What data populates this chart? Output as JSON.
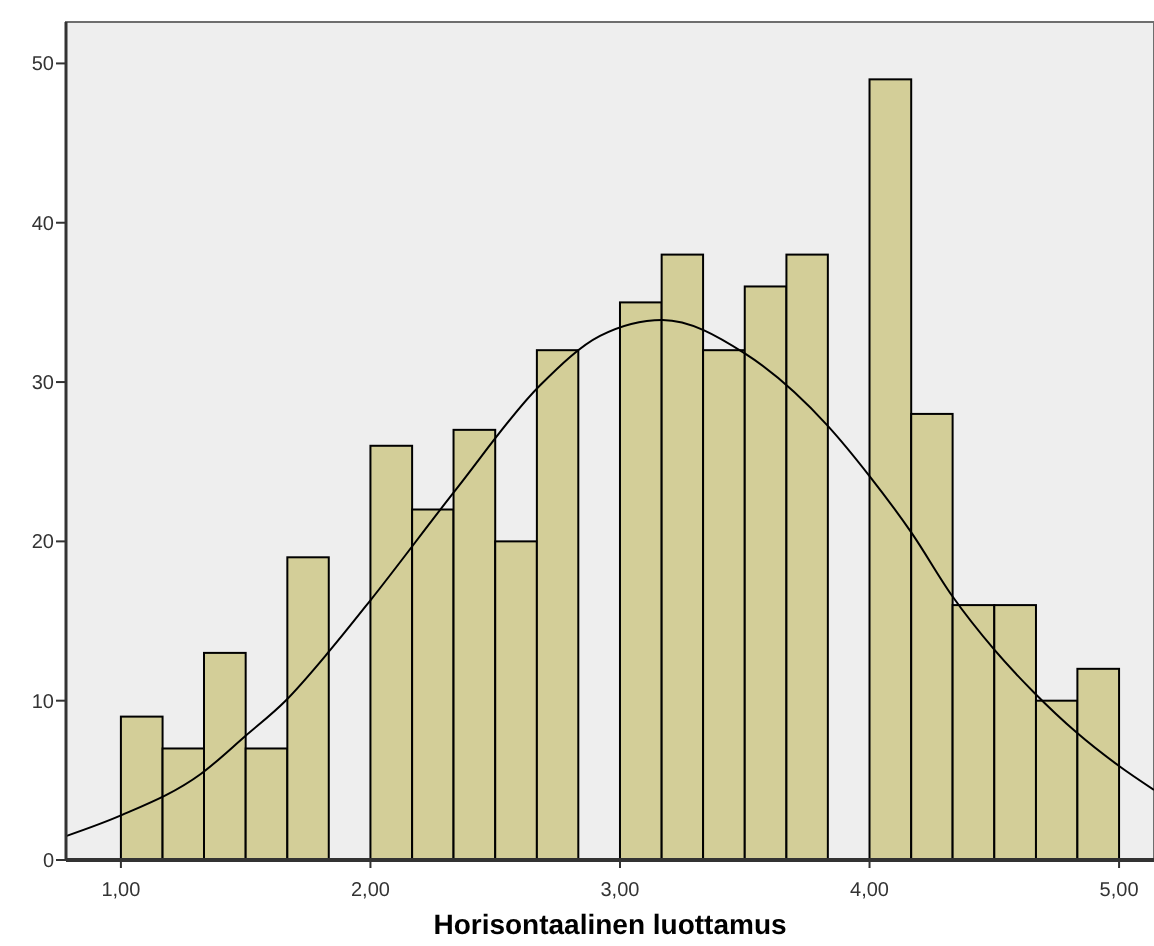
{
  "chart_data": {
    "type": "histogram",
    "xlabel": "Horisontaalinen luottamus",
    "xlim": [
      0.78,
      5.14
    ],
    "ylim": [
      0,
      52.6
    ],
    "xticks": [
      {
        "value": 1,
        "label": "1,00"
      },
      {
        "value": 2,
        "label": "2,00"
      },
      {
        "value": 3,
        "label": "3,00"
      },
      {
        "value": 4,
        "label": "4,00"
      },
      {
        "value": 5,
        "label": "5,00"
      }
    ],
    "yticks": [
      0,
      10,
      20,
      30,
      40,
      50
    ],
    "grid": false,
    "series": [
      {
        "color": "#d3ce98",
        "bins": [
          1,
          1.167,
          1.333,
          1.5,
          1.667,
          1.833,
          2,
          2.167,
          2.333,
          2.5,
          2.667,
          2.833,
          3,
          3.167,
          3.333,
          3.5,
          3.667,
          3.833,
          4,
          4.167,
          4.333,
          4.5,
          4.667,
          4.833,
          5
        ],
        "values": [
          9,
          7,
          13,
          7,
          19,
          0,
          26,
          22,
          27,
          20,
          32,
          0,
          35,
          38,
          32,
          36,
          38,
          0,
          49,
          28,
          16,
          16,
          10,
          12
        ]
      },
      {
        "type": "line",
        "color": "#000000",
        "marker": "none",
        "line_style": "solid",
        "x": [
          0.78,
          1.0,
          1.32,
          1.5,
          1.66,
          1.84,
          2.0,
          2.34,
          2.68,
          2.92,
          3.17,
          3.5,
          3.83,
          4.0,
          4.17,
          4.33,
          4.5,
          4.66,
          4.83,
          5.0,
          5.14
        ],
        "values": [
          1.5,
          2.8,
          5.4,
          7.8,
          10.0,
          13.2,
          16.3,
          23.2,
          29.8,
          32.9,
          33.9,
          31.8,
          27.3,
          24.1,
          20.5,
          16.6,
          13.2,
          10.5,
          8.0,
          5.9,
          4.4
        ]
      }
    ]
  }
}
